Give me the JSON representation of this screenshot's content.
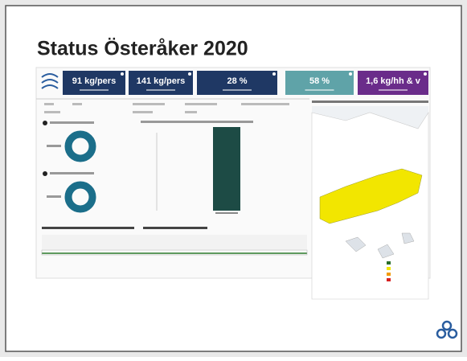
{
  "header": {
    "title": "Status Österåker 2020"
  },
  "kpis": [
    {
      "label": "91 kg/pers",
      "color": "#1f3864"
    },
    {
      "label": "141 kg/pers",
      "color": "#1f3864"
    },
    {
      "label": "28 %",
      "color": "#1f3864"
    },
    {
      "label": "58 %",
      "color": "#5fa3a8"
    },
    {
      "label": "1,6 kg/hh & v",
      "color": "#6a2c8a"
    }
  ]
}
